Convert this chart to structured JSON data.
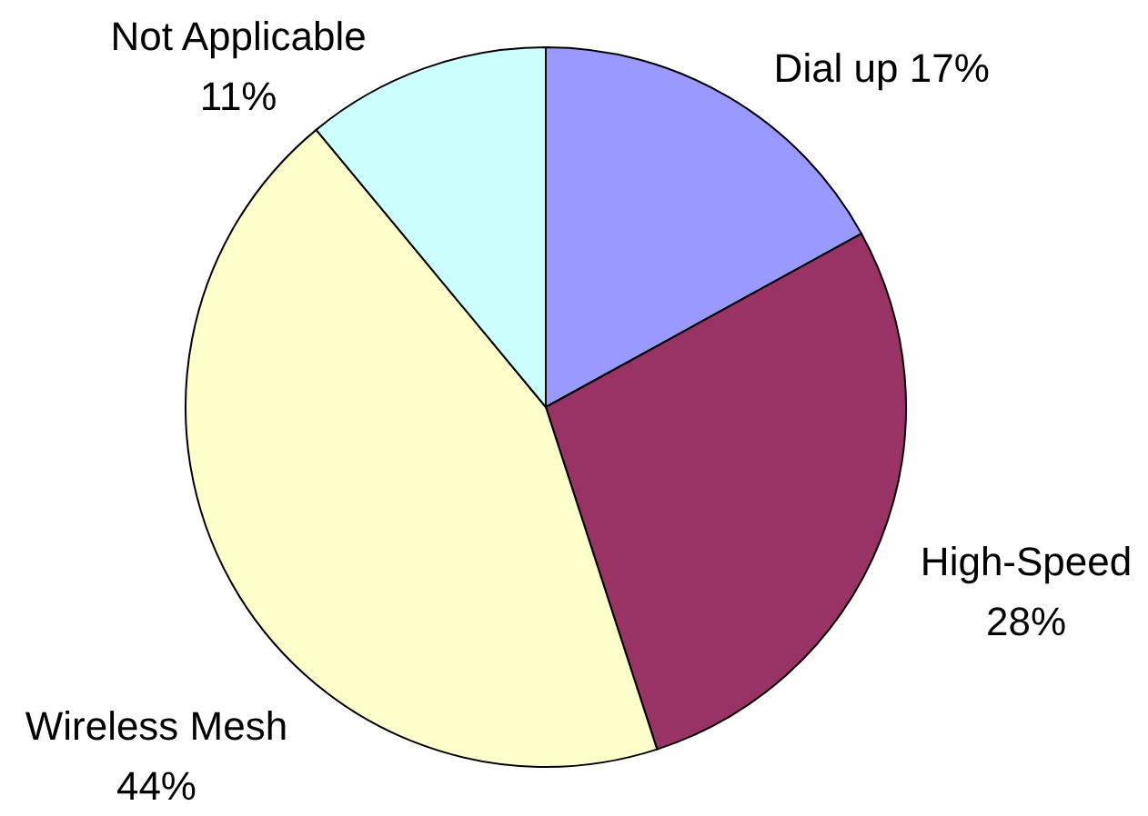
{
  "chart_data": {
    "type": "pie",
    "categories": [
      "Dial up",
      "High-Speed",
      "Wireless Mesh",
      "Not Applicable"
    ],
    "values": [
      17,
      28,
      44,
      11
    ],
    "colors": [
      "#9999ff",
      "#993366",
      "#ffffcc",
      "#ccffff"
    ],
    "value_labels": [
      "17%",
      "28%",
      "44%",
      "11%"
    ]
  }
}
